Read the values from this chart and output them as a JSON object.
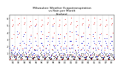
{
  "title": "Milwaukee Weather Evapotranspiration\nvs Rain per Month\n(Inches)",
  "title_fontsize": 3.2,
  "ylim": [
    0,
    6.5
  ],
  "yticks": [
    1,
    2,
    3,
    4,
    5,
    6
  ],
  "ytick_labels": [
    "1",
    "2",
    "3",
    "4",
    "5",
    "6"
  ],
  "ytick_fontsize": 2.5,
  "xtick_fontsize": 2.3,
  "years": [
    "91",
    "92",
    "93",
    "94",
    "95",
    "96",
    "97",
    "98",
    "99",
    "00",
    "01",
    "02",
    "03",
    "04",
    "05",
    "06",
    "07",
    "08"
  ],
  "months_per_year": 12,
  "et_color": "#dd0000",
  "rain_color": "#0000cc",
  "net_color": "#000000",
  "grid_color": "#aaaaaa",
  "background": "#ffffff",
  "et_monthly": [
    0.1,
    0.2,
    0.6,
    1.5,
    3.2,
    5.0,
    5.8,
    5.2,
    3.8,
    2.0,
    0.7,
    0.1,
    0.1,
    0.3,
    0.7,
    1.6,
    3.4,
    5.2,
    6.0,
    5.4,
    4.0,
    2.2,
    0.8,
    0.1,
    0.1,
    0.2,
    0.8,
    1.7,
    3.5,
    5.3,
    6.1,
    5.5,
    4.1,
    2.3,
    0.9,
    0.2,
    0.1,
    0.2,
    0.6,
    1.4,
    3.1,
    4.9,
    5.7,
    5.1,
    3.7,
    1.9,
    0.6,
    0.1,
    0.1,
    0.3,
    0.7,
    1.6,
    3.3,
    5.1,
    5.9,
    5.3,
    3.9,
    2.1,
    0.7,
    0.1,
    0.1,
    0.2,
    0.6,
    1.5,
    3.2,
    5.0,
    5.8,
    5.2,
    3.8,
    2.0,
    0.7,
    0.1,
    0.1,
    0.3,
    0.8,
    1.7,
    3.5,
    5.3,
    6.1,
    5.5,
    4.1,
    2.3,
    0.8,
    0.2,
    0.1,
    0.2,
    0.7,
    1.6,
    3.4,
    5.2,
    6.0,
    5.4,
    4.0,
    2.2,
    0.7,
    0.1,
    0.1,
    0.3,
    0.6,
    1.5,
    3.2,
    5.0,
    5.8,
    5.2,
    3.8,
    2.0,
    0.7,
    0.1,
    0.1,
    0.2,
    0.7,
    1.6,
    3.3,
    5.1,
    5.9,
    5.3,
    3.9,
    2.1,
    0.8,
    0.1,
    0.1,
    0.3,
    0.8,
    1.7,
    3.5,
    5.3,
    6.1,
    5.5,
    4.1,
    2.3,
    0.8,
    0.2,
    0.1,
    0.2,
    0.6,
    1.4,
    3.1,
    4.9,
    5.7,
    5.1,
    3.7,
    1.9,
    0.6,
    0.1,
    0.1,
    0.3,
    0.7,
    1.6,
    3.4,
    5.2,
    6.0,
    5.4,
    4.0,
    2.2,
    0.8,
    0.1,
    0.1,
    0.2,
    0.6,
    1.5,
    3.2,
    5.0,
    5.8,
    5.2,
    3.8,
    2.0,
    0.7,
    0.1,
    0.1,
    0.3,
    0.8,
    1.7,
    3.5,
    5.3,
    6.1,
    5.5,
    4.1,
    2.3,
    0.8,
    0.2,
    0.1,
    0.2,
    0.7,
    1.6,
    3.3,
    5.1,
    5.9,
    5.3,
    3.9,
    2.1,
    0.7,
    0.1,
    0.1,
    0.3,
    0.6,
    1.5,
    3.2,
    5.0,
    5.8,
    5.2,
    3.8,
    2.0,
    0.7,
    0.1,
    0.1,
    0.2,
    0.7,
    1.6,
    3.4,
    5.2,
    6.0,
    5.4,
    4.0,
    0.5,
    0.3,
    0.1
  ],
  "rain_monthly": [
    1.8,
    0.5,
    1.2,
    0.8,
    1.5,
    2.2,
    1.0,
    1.5,
    1.8,
    1.0,
    0.8,
    1.2,
    0.6,
    0.4,
    0.9,
    1.8,
    4.2,
    3.8,
    1.2,
    1.0,
    1.5,
    2.5,
    0.8,
    0.6,
    0.8,
    0.6,
    1.5,
    2.8,
    3.5,
    2.5,
    3.8,
    1.8,
    1.2,
    1.8,
    1.0,
    0.5,
    0.5,
    0.4,
    1.2,
    2.2,
    2.8,
    1.5,
    1.8,
    3.5,
    2.5,
    1.2,
    0.8,
    0.4,
    0.8,
    1.0,
    1.0,
    1.5,
    5.0,
    2.8,
    1.5,
    2.2,
    1.5,
    0.8,
    0.5,
    0.6,
    0.4,
    0.5,
    1.8,
    3.2,
    2.5,
    4.2,
    2.5,
    1.5,
    2.2,
    1.5,
    1.0,
    0.6,
    0.8,
    0.4,
    1.2,
    1.8,
    3.2,
    2.2,
    3.5,
    2.8,
    1.5,
    1.2,
    0.8,
    0.4,
    0.5,
    0.6,
    0.8,
    2.8,
    3.2,
    5.0,
    2.2,
    1.2,
    2.0,
    1.8,
    1.2,
    0.8,
    0.8,
    0.4,
    1.5,
    2.2,
    3.8,
    2.8,
    2.5,
    3.2,
    1.8,
    1.5,
    1.0,
    0.5,
    0.4,
    0.8,
    1.0,
    1.8,
    2.5,
    3.5,
    2.8,
    1.8,
    1.5,
    1.2,
    0.6,
    0.4,
    0.8,
    0.5,
    1.8,
    2.8,
    4.2,
    2.8,
    1.8,
    2.8,
    2.2,
    1.8,
    1.2,
    0.6,
    0.5,
    0.4,
    1.0,
    1.5,
    2.8,
    4.2,
    3.8,
    2.2,
    1.5,
    1.2,
    0.8,
    0.4,
    0.8,
    0.6,
    1.5,
    2.5,
    3.5,
    2.5,
    1.8,
    3.5,
    2.8,
    1.5,
    1.0,
    0.5,
    0.4,
    0.5,
    1.2,
    2.2,
    3.2,
    4.8,
    2.5,
    1.8,
    2.0,
    1.2,
    0.8,
    0.4,
    0.8,
    0.4,
    1.0,
    1.8,
    3.8,
    2.8,
    3.2,
    2.5,
    1.8,
    1.5,
    0.6,
    0.5,
    0.5,
    0.6,
    1.8,
    2.8,
    2.5,
    3.8,
    2.8,
    2.2,
    1.5,
    1.2,
    1.0,
    0.4,
    0.8,
    0.4,
    1.2,
    1.8,
    3.2,
    2.8,
    2.5,
    3.2,
    2.2,
    1.8,
    0.8,
    0.6,
    0.4,
    0.5,
    1.0,
    2.5,
    3.5,
    2.8,
    2.2,
    2.8,
    1.8,
    1.5,
    0.8,
    0.5
  ],
  "net_monthly": [
    0.5,
    0.3,
    0.8,
    1.0,
    1.2,
    0.8,
    0.5,
    0.8,
    0.6,
    0.4,
    0.5,
    0.6,
    0.3,
    0.2,
    0.5,
    0.8,
    1.0,
    0.8,
    0.4,
    0.5,
    0.6,
    0.8,
    0.4,
    0.3,
    0.4,
    0.3,
    0.6,
    1.0,
    1.2,
    0.8,
    0.8,
    0.6,
    0.5,
    0.6,
    0.5,
    0.2,
    0.3,
    0.2,
    0.5,
    0.8,
    0.8,
    0.5,
    0.5,
    1.0,
    0.8,
    0.4,
    0.3,
    0.2,
    0.3,
    0.4,
    0.4,
    0.5,
    1.5,
    0.8,
    0.4,
    0.6,
    0.5,
    0.3,
    0.2,
    0.2,
    0.2,
    0.2,
    0.6,
    1.0,
    0.8,
    1.2,
    0.8,
    0.4,
    0.6,
    0.5,
    0.4,
    0.2,
    0.3,
    0.2,
    0.4,
    0.5,
    1.0,
    0.6,
    1.0,
    0.8,
    0.4,
    0.4,
    0.3,
    0.2,
    0.2,
    0.2,
    0.3,
    0.8,
    1.0,
    1.5,
    0.6,
    0.3,
    0.6,
    0.5,
    0.4,
    0.3,
    0.3,
    0.2,
    0.5,
    0.6,
    1.2,
    0.8,
    0.8,
    1.0,
    0.5,
    0.5,
    0.4,
    0.2,
    0.2,
    0.3,
    0.4,
    0.5,
    0.8,
    1.0,
    0.8,
    0.5,
    0.4,
    0.4,
    0.2,
    0.2,
    0.3,
    0.2,
    0.6,
    0.8,
    1.2,
    0.8,
    0.5,
    0.8,
    0.6,
    0.6,
    0.4,
    0.2,
    0.2,
    0.2,
    0.4,
    0.5,
    0.8,
    1.2,
    1.0,
    0.6,
    0.4,
    0.4,
    0.3,
    0.2,
    0.3,
    0.2,
    0.5,
    0.8,
    1.0,
    0.6,
    0.5,
    1.0,
    0.8,
    0.4,
    0.4,
    0.2,
    0.2,
    0.2,
    0.4,
    0.6,
    1.0,
    1.4,
    0.8,
    0.5,
    0.5,
    0.4,
    0.3,
    0.2,
    0.3,
    0.2,
    0.4,
    0.5,
    1.2,
    0.8,
    1.0,
    0.8,
    0.5,
    0.5,
    0.2,
    0.2,
    0.2,
    0.2,
    0.6,
    0.8,
    0.8,
    1.0,
    0.8,
    0.6,
    0.4,
    0.4,
    0.4,
    0.2,
    0.3,
    0.2,
    0.4,
    0.5,
    1.0,
    0.8,
    0.8,
    1.0,
    0.6,
    0.6,
    0.3,
    0.2,
    0.2,
    0.2,
    0.4,
    0.8,
    1.0,
    0.8,
    0.6,
    0.8,
    0.5,
    0.4,
    0.3,
    0.2
  ]
}
